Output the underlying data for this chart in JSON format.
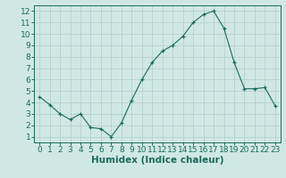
{
  "x": [
    0,
    1,
    2,
    3,
    4,
    5,
    6,
    7,
    8,
    9,
    10,
    11,
    12,
    13,
    14,
    15,
    16,
    17,
    18,
    19,
    20,
    21,
    22,
    23
  ],
  "y": [
    4.5,
    3.8,
    3.0,
    2.5,
    3.0,
    1.8,
    1.7,
    1.0,
    2.2,
    4.2,
    6.0,
    7.5,
    8.5,
    9.0,
    9.8,
    11.0,
    11.7,
    12.0,
    10.5,
    7.5,
    5.2,
    5.2,
    5.3,
    3.7
  ],
  "line_color": "#1a6b5a",
  "marker": "+",
  "bg_color": "#d0e8e4",
  "grid_color": "#b0cdc8",
  "xlabel": "Humidex (Indice chaleur)",
  "xlabel_fontsize": 7.5,
  "tick_fontsize": 6.5,
  "ylim": [
    0.5,
    12.5
  ],
  "xlim": [
    -0.5,
    23.5
  ],
  "yticks": [
    1,
    2,
    3,
    4,
    5,
    6,
    7,
    8,
    9,
    10,
    11,
    12
  ],
  "xticks": [
    0,
    1,
    2,
    3,
    4,
    5,
    6,
    7,
    8,
    9,
    10,
    11,
    12,
    13,
    14,
    15,
    16,
    17,
    18,
    19,
    20,
    21,
    22,
    23
  ]
}
